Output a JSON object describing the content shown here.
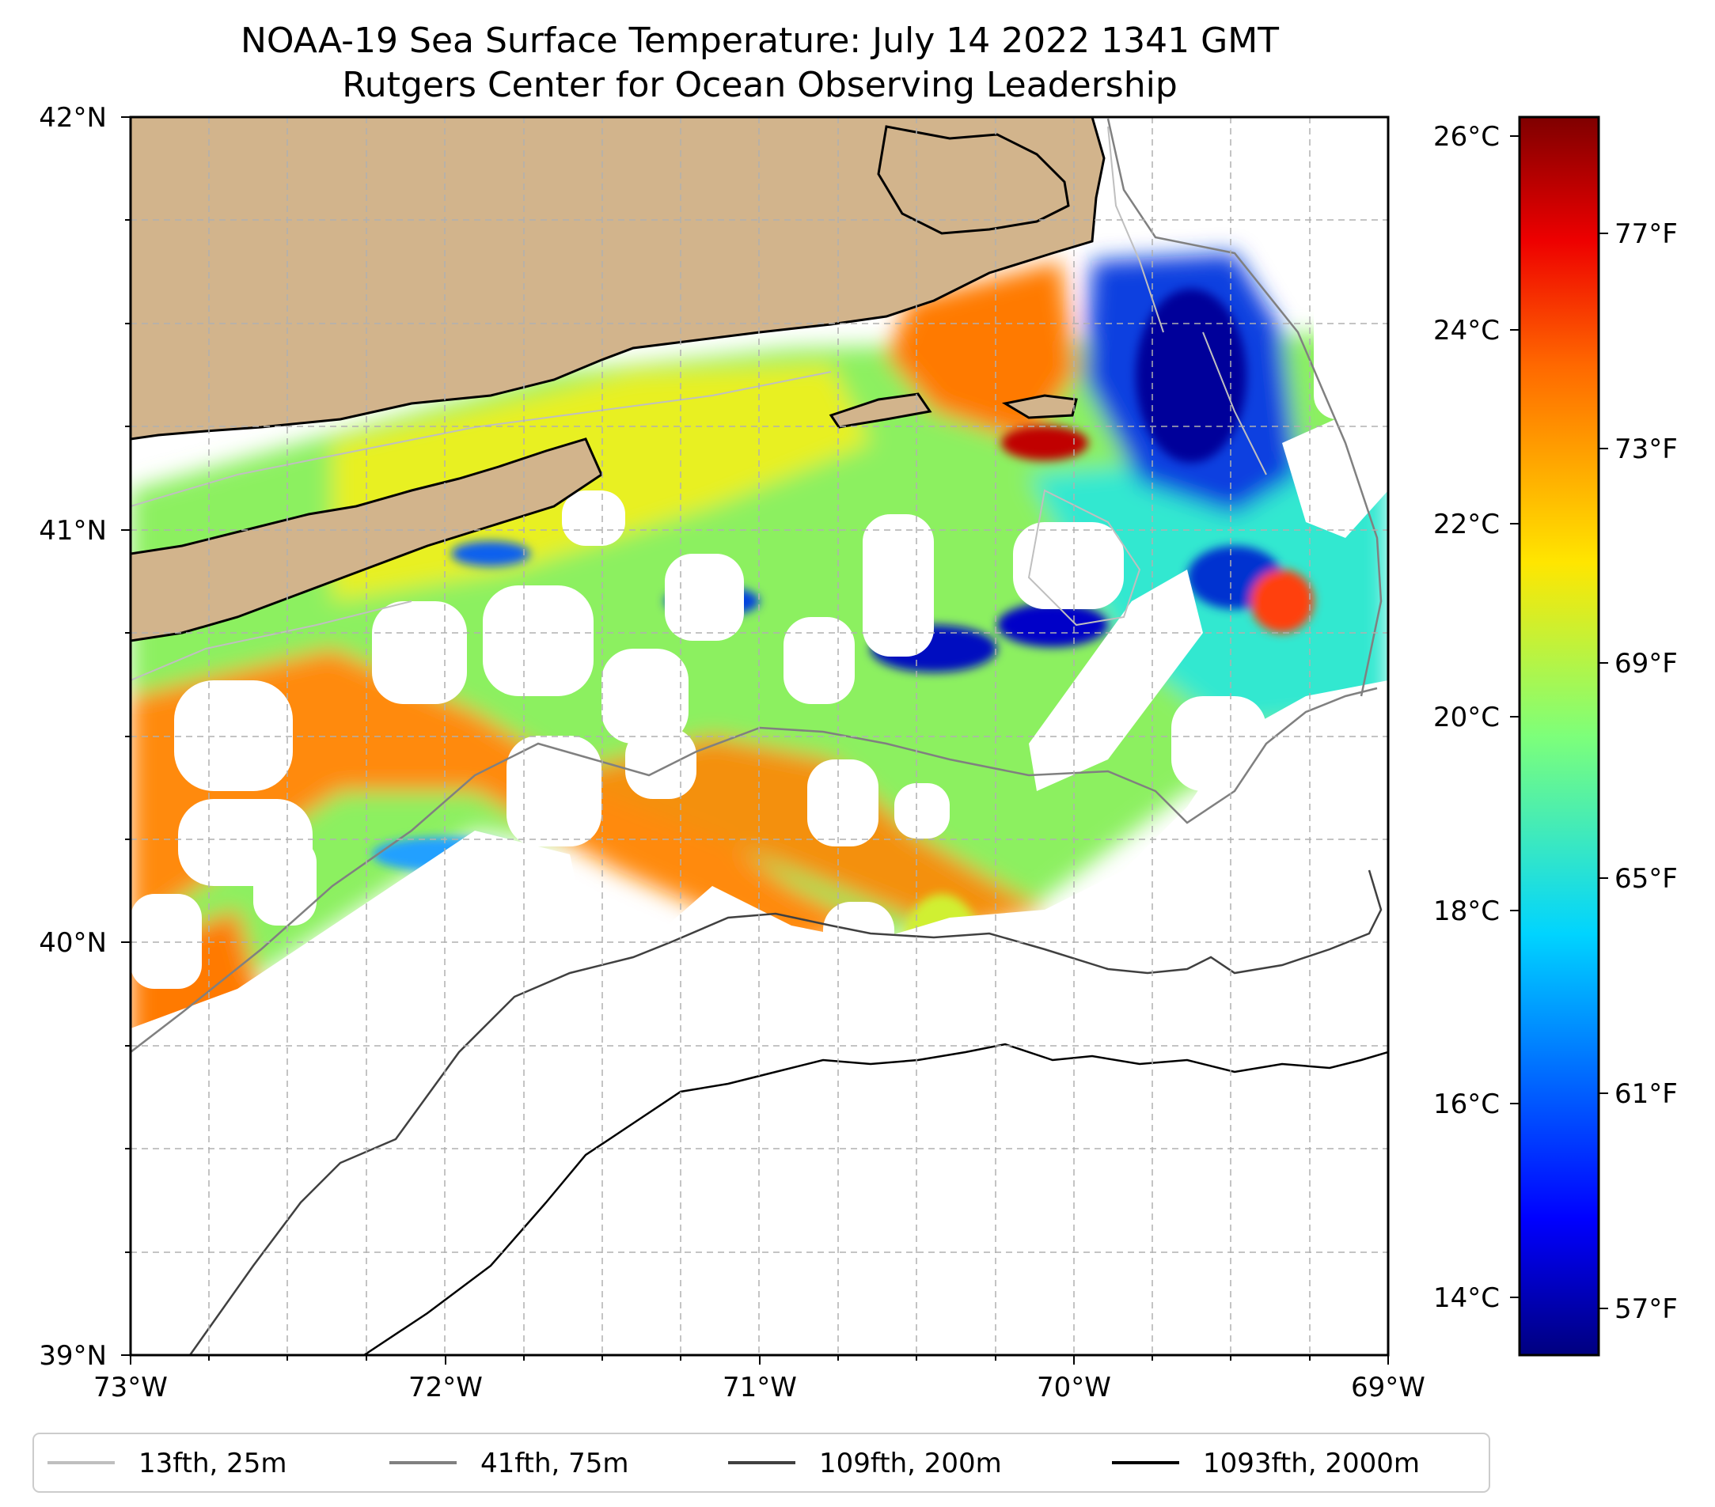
{
  "title": {
    "line1": "NOAA-19 Sea Surface Temperature: July 14 2022 1341 GMT",
    "line2": "Rutgers Center for Ocean Observing Leadership"
  },
  "map": {
    "lat_ticks": [
      "42°N",
      "41°N",
      "40°N",
      "39°N"
    ],
    "lon_ticks": [
      "73°W",
      "72°W",
      "71°W",
      "70°W",
      "69°W"
    ],
    "land_color": "#d2b48c",
    "no_data_color": "#ffffff"
  },
  "colorbar": {
    "celsius_ticks": [
      "26°C",
      "24°C",
      "22°C",
      "20°C",
      "18°C",
      "16°C",
      "14°C"
    ],
    "fahrenheit_ticks": [
      "77°F",
      "73°F",
      "69°F",
      "65°F",
      "61°F",
      "57°F"
    ],
    "colormap": "jet",
    "min_c": 13.5,
    "max_c": 26.2
  },
  "legend": {
    "items": [
      {
        "label": "13fth, 25m",
        "color": "#bfbfbf"
      },
      {
        "label": "41fth, 75m",
        "color": "#808080"
      },
      {
        "label": "109fth, 200m",
        "color": "#404040"
      },
      {
        "label": "1093fth, 2000m",
        "color": "#000000"
      }
    ]
  }
}
